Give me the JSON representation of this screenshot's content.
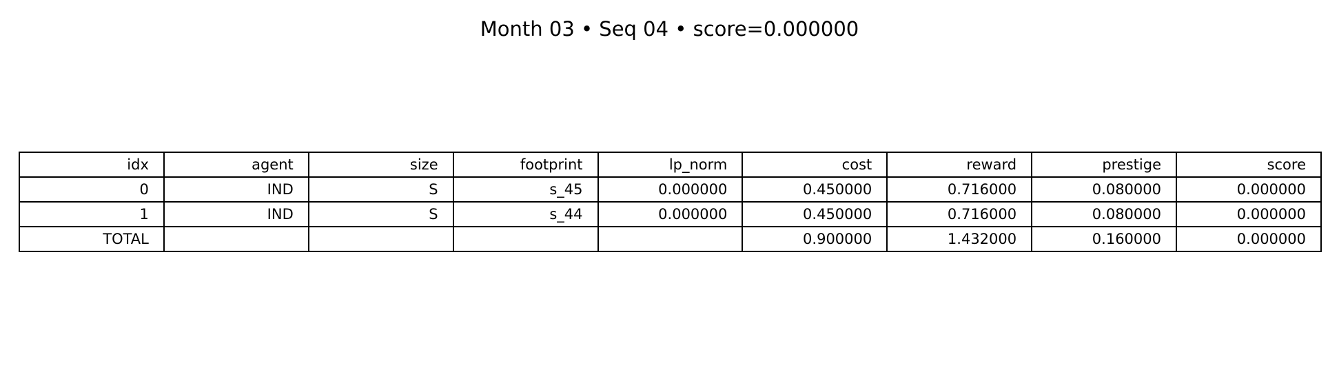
{
  "chart_data": {
    "type": "table",
    "title": "Month 03 • Seq 04 • score=0.000000",
    "columns": [
      "idx",
      "agent",
      "size",
      "footprint",
      "lp_norm",
      "cost",
      "reward",
      "prestige",
      "score"
    ],
    "rows": [
      [
        "0",
        "IND",
        "S",
        "s_45",
        "0.000000",
        "0.450000",
        "0.716000",
        "0.080000",
        "0.000000"
      ],
      [
        "1",
        "IND",
        "S",
        "s_44",
        "0.000000",
        "0.450000",
        "0.716000",
        "0.080000",
        "0.000000"
      ],
      [
        "TOTAL",
        "",
        "",
        "",
        "",
        "0.900000",
        "1.432000",
        "0.160000",
        "0.000000"
      ]
    ]
  }
}
